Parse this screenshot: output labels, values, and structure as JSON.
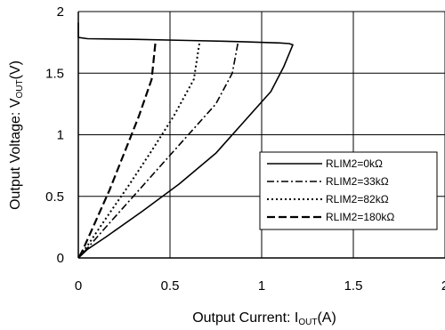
{
  "chart_data": {
    "type": "line",
    "title": "",
    "xlabel": {
      "main": "Output Current: I",
      "sub": "OUT",
      "tail": "(A)"
    },
    "ylabel": {
      "main": "Output Voltage: V",
      "sub": "OUT",
      "tail": "(V)"
    },
    "xlim": [
      0,
      2
    ],
    "ylim": [
      0,
      2
    ],
    "xticks": [
      "0",
      "0.5",
      "1",
      "1.5",
      "2"
    ],
    "yticks": [
      "0",
      "0.5",
      "1",
      "1.5",
      "2"
    ],
    "grid": true,
    "legend_position": "lower-right",
    "series": [
      {
        "name": "RLIM2=0kΩ",
        "dash": "solid",
        "points": [
          [
            0.0,
            1.91
          ],
          [
            0.0,
            1.79
          ],
          [
            0.05,
            1.78
          ],
          [
            0.3,
            1.775
          ],
          [
            0.6,
            1.765
          ],
          [
            0.9,
            1.755
          ],
          [
            1.1,
            1.745
          ],
          [
            1.15,
            1.74
          ],
          [
            1.17,
            1.73
          ],
          [
            1.12,
            1.55
          ],
          [
            1.05,
            1.35
          ],
          [
            0.9,
            1.1
          ],
          [
            0.75,
            0.85
          ],
          [
            0.55,
            0.6
          ],
          [
            0.35,
            0.38
          ],
          [
            0.15,
            0.17
          ],
          [
            0.05,
            0.07
          ],
          [
            0.0,
            0.0
          ]
        ]
      },
      {
        "name": "RLIM2=33kΩ",
        "dash": "dashdot",
        "points": [
          [
            0.87,
            1.74
          ],
          [
            0.84,
            1.5
          ],
          [
            0.75,
            1.25
          ],
          [
            0.6,
            1.0
          ],
          [
            0.45,
            0.75
          ],
          [
            0.3,
            0.5
          ],
          [
            0.15,
            0.25
          ],
          [
            0.05,
            0.08
          ],
          [
            0.0,
            0.0
          ]
        ]
      },
      {
        "name": "RLIM2=82kΩ",
        "dash": "dotted",
        "points": [
          [
            0.66,
            1.74
          ],
          [
            0.63,
            1.45
          ],
          [
            0.52,
            1.15
          ],
          [
            0.4,
            0.87
          ],
          [
            0.28,
            0.6
          ],
          [
            0.15,
            0.32
          ],
          [
            0.05,
            0.1
          ],
          [
            0.0,
            0.0
          ]
        ]
      },
      {
        "name": "RLIM2=180kΩ",
        "dash": "dashed",
        "points": [
          [
            0.42,
            1.74
          ],
          [
            0.4,
            1.45
          ],
          [
            0.33,
            1.15
          ],
          [
            0.25,
            0.85
          ],
          [
            0.17,
            0.55
          ],
          [
            0.08,
            0.25
          ],
          [
            0.02,
            0.05
          ],
          [
            0.0,
            0.0
          ]
        ]
      }
    ]
  }
}
